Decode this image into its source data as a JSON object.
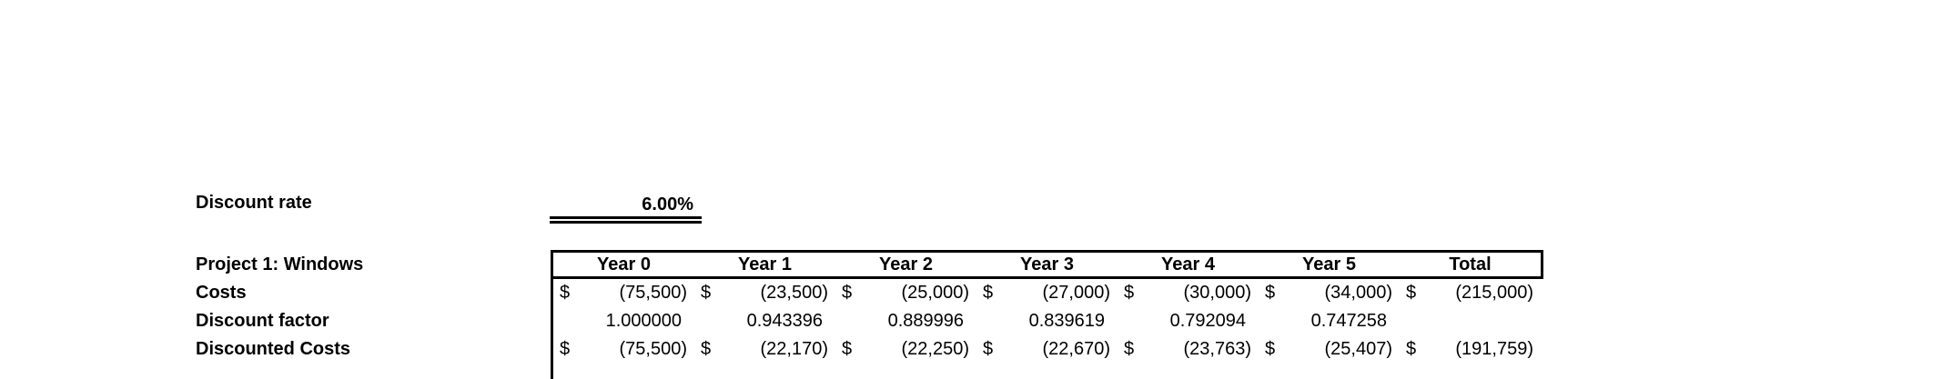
{
  "colors": {
    "background": "#ffffff",
    "text": "#000000",
    "border": "#000000"
  },
  "discount_rate": {
    "label": "Discount rate",
    "value": "6.00%"
  },
  "project_table": {
    "title": "Project 1: Windows",
    "columns": [
      "Year 0",
      "Year 1",
      "Year 2",
      "Year 3",
      "Year 4",
      "Year 5",
      "Total"
    ],
    "rows": [
      {
        "label": "Costs",
        "currency": "$",
        "values": [
          "(75,500)",
          "(23,500)",
          "(25,000)",
          "(27,000)",
          "(30,000)",
          "(34,000)"
        ],
        "total": "(215,000)"
      },
      {
        "label": "Discount factor",
        "currency": "",
        "values": [
          "1.000000",
          "0.943396",
          "0.889996",
          "0.839619",
          "0.792094",
          "0.747258"
        ],
        "total": ""
      },
      {
        "label": "Discounted Costs",
        "currency": "$",
        "values": [
          "(75,500)",
          "(22,170)",
          "(22,250)",
          "(22,670)",
          "(23,763)",
          "(25,407)"
        ],
        "total": "(191,759)"
      }
    ]
  }
}
